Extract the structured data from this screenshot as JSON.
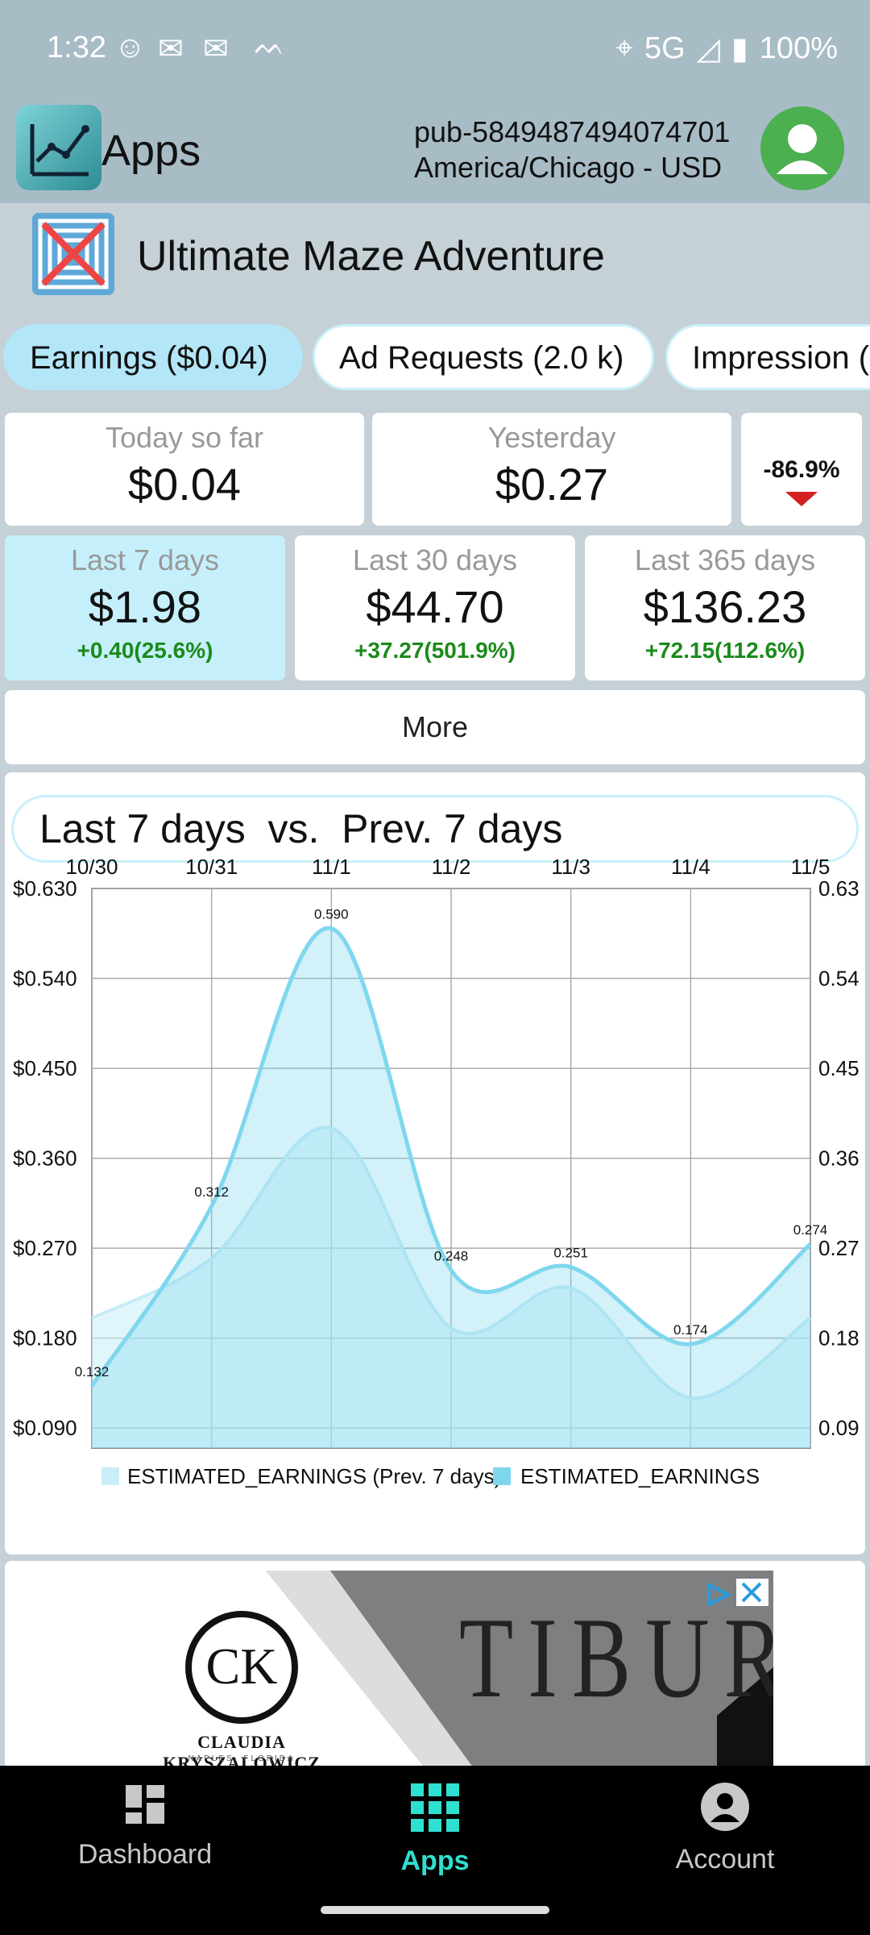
{
  "status_bar": {
    "time": "1:32",
    "network": "5G",
    "battery": "100%"
  },
  "app_bar": {
    "title": "Apps",
    "publisher_id": "pub-5849487494074701",
    "timezone_currency": "America/Chicago - USD"
  },
  "app": {
    "name": "Ultimate Maze Adventure"
  },
  "metric_tabs": [
    {
      "label": "Earnings ($0.04)"
    },
    {
      "label": "Ad Requests (2.0 k)"
    },
    {
      "label": "Impression ("
    }
  ],
  "today": {
    "label": "Today so far",
    "value": "$0.04"
  },
  "yesterday": {
    "label": "Yesterday",
    "value": "$0.27"
  },
  "day_change": {
    "value": "-86.9%"
  },
  "periods": [
    {
      "label": "Last 7 days",
      "value": "$1.98",
      "change": "+0.40(25.6%)"
    },
    {
      "label": "Last 30 days",
      "value": "$44.70",
      "change": "+37.27(501.9%)"
    },
    {
      "label": "Last 365 days",
      "value": "$136.23",
      "change": "+72.15(112.6%)"
    }
  ],
  "more_button": "More",
  "chart_header": "Last 7 days  vs.  Prev. 7 days",
  "chart_data": {
    "type": "area",
    "categories": [
      "10/30",
      "10/31",
      "11/1",
      "11/2",
      "11/3",
      "11/4",
      "11/5"
    ],
    "y_ticks_left": [
      "$0.630",
      "$0.540",
      "$0.450",
      "$0.360",
      "$0.270",
      "$0.180",
      "$0.090"
    ],
    "y_ticks_right": [
      "0.63",
      "0.54",
      "0.45",
      "0.36",
      "0.27",
      "0.18",
      "0.09"
    ],
    "ylim": [
      0.07,
      0.63
    ],
    "series": [
      {
        "name": "ESTIMATED_EARNINGS (Prev. 7 days)",
        "values": [
          0.2,
          0.26,
          0.39,
          0.19,
          0.23,
          0.12,
          0.2
        ],
        "color": "#c8eef8"
      },
      {
        "name": "ESTIMATED_EARNINGS",
        "values": [
          0.132,
          0.312,
          0.59,
          0.248,
          0.251,
          0.174,
          0.274
        ],
        "data_labels": [
          "0.132",
          "0.312",
          "0.590",
          "0.248",
          "0.251",
          "0.174",
          "0.274"
        ],
        "color": "#7fd7ee"
      }
    ],
    "grid": true,
    "legend": "bottom"
  },
  "ad": {
    "brand_name": "CLAUDIA KRYSZALOWICZ",
    "brand_location": "NAPLES, FLORIDA",
    "logo_text": "CK",
    "headline": "TIBURÓN"
  },
  "bottom_nav": [
    {
      "label": "Dashboard",
      "icon": "dashboard-icon"
    },
    {
      "label": "Apps",
      "icon": "apps-grid-icon"
    },
    {
      "label": "Account",
      "icon": "account-icon"
    }
  ],
  "colors": {
    "accent": "#2ee0d0",
    "positive": "#1b8a1b",
    "negative": "#d32020",
    "chip_active": "#b3e6f7"
  }
}
